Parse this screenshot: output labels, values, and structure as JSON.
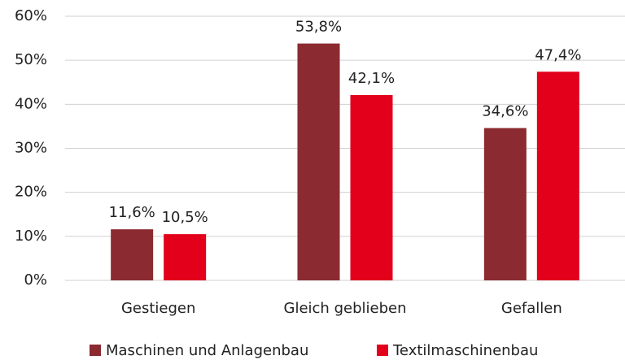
{
  "chart_data": {
    "type": "bar",
    "categories": [
      "Gestiegen",
      "Gleich geblieben",
      "Gefallen"
    ],
    "series": [
      {
        "name": "Maschinen und Anlagenbau",
        "color": "#8b2a31",
        "values": [
          11.6,
          53.8,
          34.6
        ],
        "value_labels": [
          "11,6%",
          "53,8%",
          "34,6%"
        ]
      },
      {
        "name": "Textilmaschinenbau",
        "color": "#e2001a",
        "values": [
          10.5,
          42.1,
          47.4
        ],
        "value_labels": [
          "10,5%",
          "42,1%",
          "47,4%"
        ]
      }
    ],
    "ylim": [
      0,
      60
    ],
    "yticks": [
      {
        "value": 0,
        "label": "0%"
      },
      {
        "value": 10,
        "label": "10%"
      },
      {
        "value": 20,
        "label": "20%"
      },
      {
        "value": 30,
        "label": "30%"
      },
      {
        "value": 40,
        "label": "40%"
      },
      {
        "value": 50,
        "label": "50%"
      },
      {
        "value": 60,
        "label": "60%"
      }
    ],
    "grid": true,
    "legend": "bottom"
  }
}
